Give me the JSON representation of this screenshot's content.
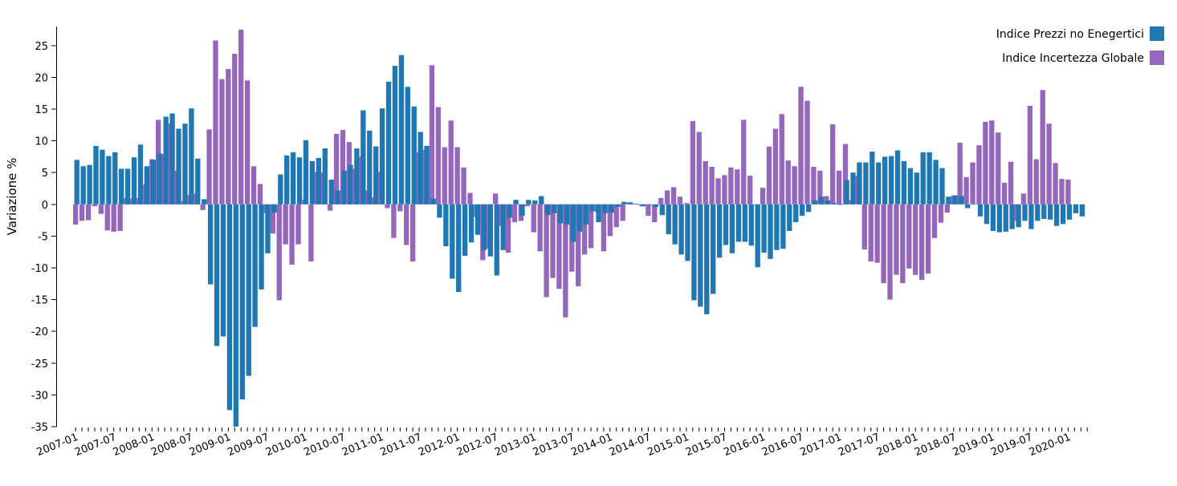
{
  "chart_data": {
    "type": "bar",
    "ylabel": "Variazione %",
    "ylim": [
      -35,
      28
    ],
    "yticks": [
      25,
      20,
      15,
      10,
      5,
      0,
      -5,
      -10,
      -15,
      -20,
      -25,
      -30,
      -35
    ],
    "x_tick_labels": [
      "2007-01",
      "2007-07",
      "2008-01",
      "2008-07",
      "2009-01",
      "2009-07",
      "2010-01",
      "2010-07",
      "2011-01",
      "2011-07",
      "2012-01",
      "2012-07",
      "2013-01",
      "2013-07",
      "2014-01",
      "2014-07",
      "2015-01",
      "2015-07",
      "2016-01",
      "2016-07",
      "2017-01",
      "2017-07",
      "2018-01",
      "2018-07",
      "2019-01",
      "2019-07",
      "2020-01"
    ],
    "x_start": "2007-01",
    "legend_position": "top-right",
    "colors": {
      "blue": "#1f77b4",
      "purple": "#9467bd"
    },
    "series": [
      {
        "name": "Indice Prezzi no Enegertici",
        "color": "#1f77b4",
        "values": [
          7.0,
          6.0,
          6.2,
          9.2,
          8.6,
          7.6,
          8.2,
          5.6,
          5.6,
          7.4,
          9.4,
          6.0,
          7.0,
          8.0,
          13.8,
          14.3,
          11.9,
          12.7,
          15.1,
          7.2,
          0.8,
          -12.6,
          -22.3,
          -20.8,
          -32.4,
          -35.0,
          -30.7,
          -27.0,
          -19.3,
          -13.4,
          -7.7,
          -1.3,
          4.7,
          7.7,
          8.2,
          7.4,
          10.1,
          6.8,
          7.3,
          8.8,
          3.9,
          2.2,
          5.3,
          6.2,
          8.8,
          14.8,
          11.6,
          9.1,
          15.1,
          19.3,
          21.8,
          23.5,
          18.5,
          15.4,
          11.4,
          9.2,
          0.9,
          -2.1,
          -6.6,
          -11.7,
          -13.8,
          -8.1,
          -6.0,
          -4.8,
          -7.2,
          -8.2,
          -11.2,
          -7.2,
          -2.1,
          0.7,
          -1.8,
          0.7,
          0.6,
          1.3,
          -1.7,
          -1.4,
          -3.0,
          -3.2,
          -5.9,
          -4.3,
          -3.2,
          -1.1,
          -2.8,
          -1.4,
          -1.3,
          -0.4,
          0.4,
          0.3,
          0.1,
          -0.3,
          -0.1,
          -0.4,
          -1.7,
          -4.7,
          -6.3,
          -7.9,
          -8.9,
          -15.1,
          -16.1,
          -17.3,
          -14.1,
          -8.4,
          -6.4,
          -7.7,
          -5.9,
          -5.9,
          -6.5,
          -9.9,
          -7.6,
          -8.6,
          -7.2,
          -7.0,
          -4.2,
          -2.8,
          -1.8,
          -1.2,
          0.6,
          1.2,
          0.6,
          0.2,
          -0.1,
          3.8,
          5.0,
          6.6,
          6.6,
          8.3,
          6.6,
          7.5,
          7.6,
          8.5,
          6.8,
          5.7,
          5.0,
          8.2,
          8.2,
          7.0,
          5.7,
          1.2,
          1.4,
          1.3,
          -0.6,
          0.0,
          -1.9,
          -3.1,
          -4.2,
          -4.4,
          -4.3,
          -3.9,
          -3.6,
          -2.6,
          -3.9,
          -2.6,
          -2.3,
          -2.4,
          -3.4,
          -3.1,
          -2.4,
          -1.4,
          -1.9
        ]
      },
      {
        "name": "Indice Incertezza Globale",
        "color": "#9467bd",
        "values": [
          -3.2,
          -2.6,
          -2.5,
          -0.3,
          -1.5,
          -4.1,
          -4.3,
          -4.2,
          1.0,
          0.9,
          1.0,
          3.1,
          7.1,
          13.3,
          7.9,
          12.7,
          5.3,
          0.5,
          1.5,
          1.7,
          -0.9,
          11.8,
          25.8,
          19.7,
          21.3,
          23.7,
          27.5,
          19.5,
          6.0,
          3.2,
          -1.4,
          -4.6,
          -15.1,
          -6.3,
          -9.5,
          -6.3,
          0.7,
          -9.0,
          5.1,
          5.0,
          -1.0,
          11.1,
          11.7,
          9.8,
          5.6,
          7.5,
          2.2,
          1.1,
          5.1,
          -0.6,
          -5.3,
          -1.1,
          -6.4,
          -9.0,
          8.2,
          8.6,
          21.9,
          15.3,
          9.0,
          13.2,
          9.0,
          5.8,
          1.8,
          -2.0,
          -8.8,
          -7.0,
          1.7,
          -3.4,
          -7.6,
          -2.8,
          -2.6,
          -0.3,
          -4.4,
          -7.4,
          -14.6,
          -11.6,
          -13.3,
          -17.8,
          -10.6,
          -12.9,
          -7.9,
          -6.9,
          -1.2,
          -7.4,
          -5.0,
          -3.6,
          -2.6,
          0.3,
          0.1,
          -0.3,
          -1.8,
          -2.8,
          1.0,
          2.2,
          2.7,
          1.2,
          0.2,
          13.1,
          11.4,
          6.8,
          5.9,
          4.1,
          4.6,
          5.8,
          5.5,
          13.3,
          4.5,
          -0.1,
          2.6,
          9.1,
          11.9,
          14.2,
          6.9,
          6.0,
          18.5,
          16.3,
          5.9,
          5.3,
          1.3,
          12.6,
          5.3,
          9.5,
          0.7,
          4.5,
          -7.1,
          -9.0,
          -9.2,
          -12.4,
          -15.0,
          -11.1,
          -12.4,
          -10.1,
          -11.1,
          -11.9,
          -10.9,
          -5.3,
          -2.9,
          -1.3,
          1.4,
          9.7,
          4.3,
          6.6,
          9.3,
          13.0,
          13.2,
          11.3,
          3.4,
          6.7,
          -2.6,
          1.7,
          15.5,
          7.1,
          18.0,
          12.7,
          6.5,
          4.0,
          3.9
        ]
      }
    ]
  }
}
